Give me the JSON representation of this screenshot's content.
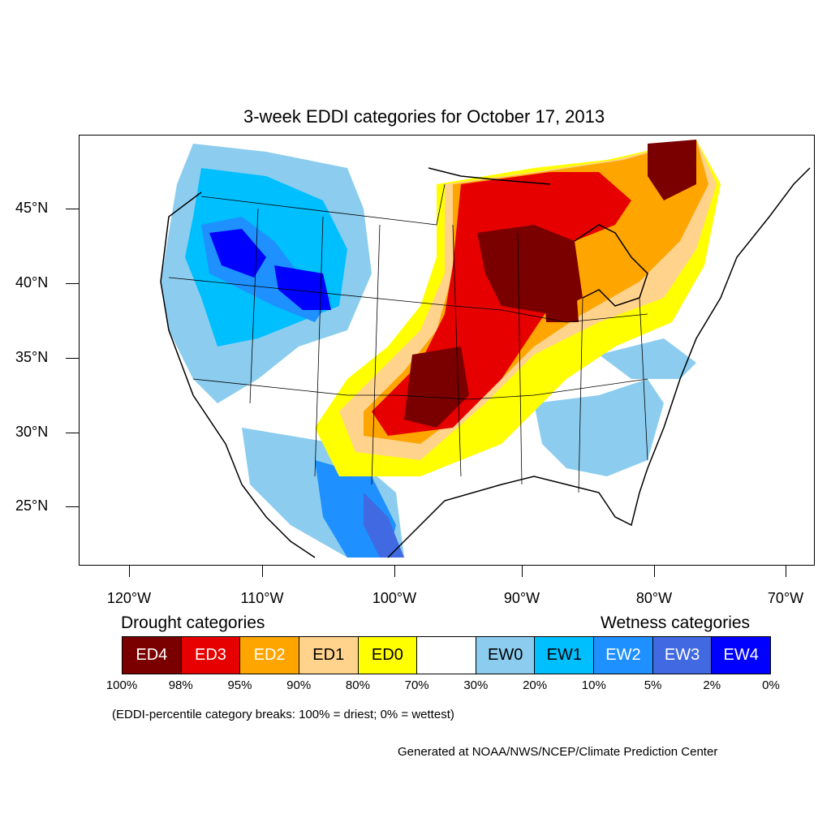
{
  "title": "3-week EDDI categories for October 17, 2013",
  "y_axis_labels": [
    "45°N",
    "40°N",
    "35°N",
    "30°N",
    "25°N"
  ],
  "x_axis_labels": [
    "120°W",
    "110°W",
    "100°W",
    "90°W",
    "80°W",
    "70°W"
  ],
  "legend": {
    "drought_heading": "Drought categories",
    "wetness_heading": "Wetness categories",
    "categories": [
      {
        "label": "ED4",
        "color": "#7a0000",
        "text_color": "#ffffff"
      },
      {
        "label": "ED3",
        "color": "#e60000",
        "text_color": "#ffffff"
      },
      {
        "label": "ED2",
        "color": "#ffa500",
        "text_color": "#ffffff"
      },
      {
        "label": "ED1",
        "color": "#ffd38c",
        "text_color": "#000000"
      },
      {
        "label": "ED0",
        "color": "#ffff00",
        "text_color": "#000000"
      },
      {
        "label": "",
        "color": "#ffffff",
        "text_color": "#000000"
      },
      {
        "label": "EW0",
        "color": "#8ccdef",
        "text_color": "#000000"
      },
      {
        "label": "EW1",
        "color": "#00bfff",
        "text_color": "#000000"
      },
      {
        "label": "EW2",
        "color": "#1e90ff",
        "text_color": "#ffffff"
      },
      {
        "label": "EW3",
        "color": "#4169e1",
        "text_color": "#ffffff"
      },
      {
        "label": "EW4",
        "color": "#0000ff",
        "text_color": "#ffffff"
      }
    ],
    "percentiles": [
      "100%",
      "98%",
      "95%",
      "90%",
      "80%",
      "70%",
      "30%",
      "20%",
      "10%",
      "5%",
      "2%",
      "0%"
    ]
  },
  "note": "(EDDI-percentile category breaks: 100% = driest; 0% = wettest)",
  "credit": "Generated at NOAA/NWS/NCEP/Climate Prediction Center"
}
